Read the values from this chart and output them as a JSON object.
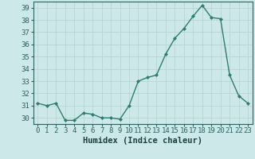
{
  "x": [
    0,
    1,
    2,
    3,
    4,
    5,
    6,
    7,
    8,
    9,
    10,
    11,
    12,
    13,
    14,
    15,
    16,
    17,
    18,
    19,
    20,
    21,
    22,
    23
  ],
  "y": [
    31.2,
    31.0,
    31.2,
    29.8,
    29.8,
    30.4,
    30.3,
    30.0,
    30.0,
    29.9,
    31.0,
    33.0,
    33.3,
    33.5,
    35.2,
    36.5,
    37.3,
    38.3,
    39.2,
    38.2,
    38.1,
    33.5,
    31.8,
    31.2
  ],
  "line_color": "#2e7d6e",
  "marker": "D",
  "marker_size": 2.0,
  "bg_color": "#cde8e8",
  "grid_color": "#b8d4d4",
  "xlabel": "Humidex (Indice chaleur)",
  "ylim": [
    29.5,
    39.5
  ],
  "yticks": [
    30,
    31,
    32,
    33,
    34,
    35,
    36,
    37,
    38,
    39
  ],
  "xticks": [
    0,
    1,
    2,
    3,
    4,
    5,
    6,
    7,
    8,
    9,
    10,
    11,
    12,
    13,
    14,
    15,
    16,
    17,
    18,
    19,
    20,
    21,
    22,
    23
  ],
  "tick_fontsize": 6.5,
  "xlabel_fontsize": 7.5,
  "line_width": 1.0
}
